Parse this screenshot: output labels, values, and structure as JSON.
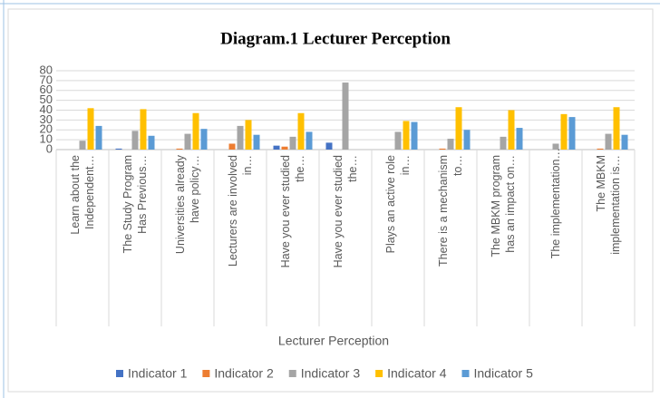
{
  "chart_data": {
    "type": "bar",
    "title": "Diagram.1 Lecturer Perception",
    "x_label": "Lecturer Perception",
    "categories": [
      "Learn about the Independent…",
      "The Study Program Has Previous…",
      "Universities already have policy…",
      "Lecturers are involved in…",
      "Have you ever studied the…",
      "Have you ever studied the…",
      "Plays an active role in…",
      "There is a mechanism to…",
      "The MBKM program has an impact on…",
      "The implementation…",
      "The MBKM implementation is…"
    ],
    "series": [
      {
        "name": "Indicator 1",
        "color": "#4472c4",
        "values": [
          0,
          1,
          0,
          0,
          4,
          7,
          0,
          0,
          0,
          0,
          0
        ]
      },
      {
        "name": "Indicator 2",
        "color": "#ed7d31",
        "values": [
          0,
          0,
          1,
          6,
          3,
          0,
          0,
          1,
          0,
          0,
          1
        ]
      },
      {
        "name": "Indicator 3",
        "color": "#a5a5a5",
        "values": [
          9,
          19,
          16,
          24,
          13,
          68,
          18,
          11,
          13,
          6,
          16
        ]
      },
      {
        "name": "Indicator 4",
        "color": "#ffc000",
        "values": [
          42,
          41,
          37,
          30,
          37,
          0,
          29,
          43,
          40,
          36,
          43
        ]
      },
      {
        "name": "Indicator 5",
        "color": "#5b9bd5",
        "values": [
          24,
          14,
          21,
          15,
          18,
          0,
          28,
          20,
          22,
          33,
          15
        ]
      }
    ],
    "ylim": [
      0,
      80
    ],
    "yticks": [
      0,
      10,
      20,
      30,
      40,
      50,
      60,
      70,
      80
    ],
    "grid": true,
    "legend": "bottom"
  }
}
